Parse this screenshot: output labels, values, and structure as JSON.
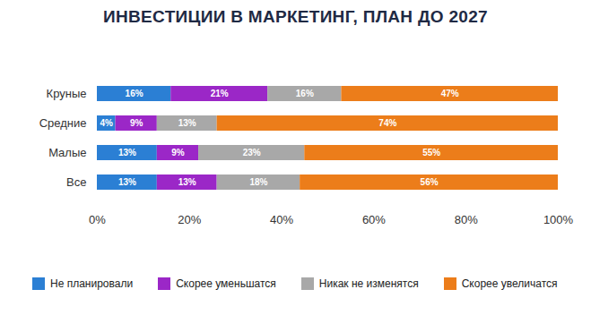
{
  "chart_data": {
    "type": "bar",
    "title": "ИНВЕСТИЦИИ В МАРКЕТИНГ, ПЛАН ДО 2027",
    "orientation": "horizontal",
    "stacked": true,
    "data_labels": true,
    "legend": "bottom",
    "grid": false,
    "categories": [
      "Круные",
      "Средние",
      "Малые",
      "Все"
    ],
    "series": [
      {
        "name": "Не планировали",
        "color": "#2b7fd4",
        "values": [
          16,
          4,
          13,
          13
        ],
        "value_labels": [
          "16%",
          "4%",
          "13%",
          "13%"
        ]
      },
      {
        "name": "Скорее уменьшатся",
        "color": "#9b27c7",
        "values": [
          21,
          9,
          9,
          13
        ],
        "value_labels": [
          "21%",
          "9%",
          "9%",
          "13%"
        ]
      },
      {
        "name": "Никак не изменятся",
        "color": "#a8a8a8",
        "values": [
          16,
          13,
          23,
          18
        ],
        "value_labels": [
          "16%",
          "13%",
          "23%",
          "18%"
        ]
      },
      {
        "name": "Скорее увеличатся",
        "color": "#ec7d1a",
        "values": [
          47,
          74,
          55,
          56
        ],
        "value_labels": [
          "47%",
          "74%",
          "55%",
          "56%"
        ]
      }
    ],
    "xlim": [
      0,
      100
    ],
    "xticks": [
      {
        "value": 0,
        "label": "0%"
      },
      {
        "value": 20,
        "label": "20%"
      },
      {
        "value": 40,
        "label": "40%"
      },
      {
        "value": 60,
        "label": "60%"
      },
      {
        "value": 80,
        "label": "80%"
      },
      {
        "value": 100,
        "label": "100%"
      }
    ]
  }
}
